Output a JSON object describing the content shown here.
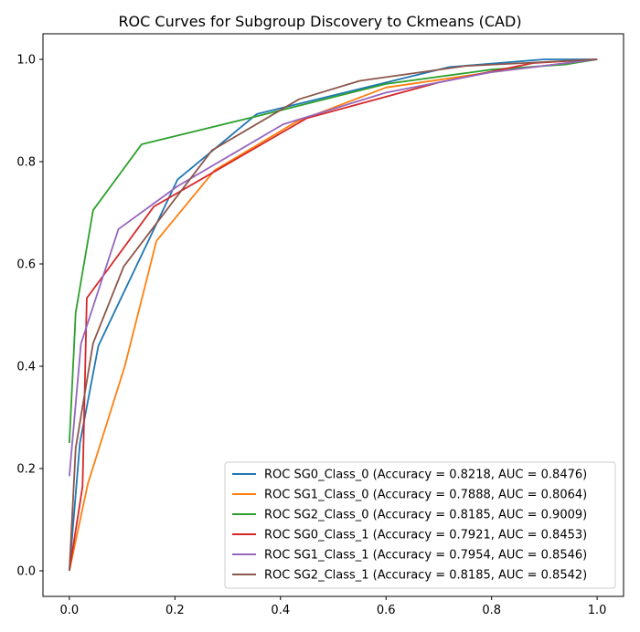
{
  "chart_data": {
    "type": "line",
    "title": "ROC Curves for Subgroup Discovery to Ckmeans (CAD)",
    "xlabel": "",
    "ylabel": "",
    "xlim": [
      -0.05,
      1.05
    ],
    "ylim": [
      -0.05,
      1.05
    ],
    "x_ticks": [
      0.0,
      0.2,
      0.4,
      0.6,
      0.8,
      1.0
    ],
    "y_ticks": [
      0.0,
      0.2,
      0.4,
      0.6,
      0.8,
      1.0
    ],
    "x_tick_labels": [
      "0.0",
      "0.2",
      "0.4",
      "0.6",
      "0.8",
      "1.0"
    ],
    "y_tick_labels": [
      "0.0",
      "0.2",
      "0.4",
      "0.6",
      "0.8",
      "1.0"
    ],
    "grid": false,
    "legend_position": "lower-right",
    "series": [
      {
        "name": "ROC SG0_Class_0 (Accuracy = 0.8218, AUC = 0.8476)",
        "color": "#1f77b4",
        "points": [
          [
            0.0,
            0.0
          ],
          [
            0.02,
            0.25
          ],
          [
            0.055,
            0.44
          ],
          [
            0.205,
            0.765
          ],
          [
            0.355,
            0.893
          ],
          [
            0.72,
            0.985
          ],
          [
            0.9,
            1.0
          ],
          [
            1.0,
            1.0
          ]
        ]
      },
      {
        "name": "ROC SG1_Class_0 (Accuracy = 0.7888, AUC = 0.8064)",
        "color": "#ff7f0e",
        "points": [
          [
            0.0,
            0.0
          ],
          [
            0.035,
            0.17
          ],
          [
            0.105,
            0.4
          ],
          [
            0.165,
            0.645
          ],
          [
            0.275,
            0.783
          ],
          [
            0.43,
            0.878
          ],
          [
            0.6,
            0.945
          ],
          [
            0.8,
            0.975
          ],
          [
            1.0,
            1.0
          ]
        ]
      },
      {
        "name": "ROC SG2_Class_0 (Accuracy = 0.8185, AUC = 0.9009)",
        "color": "#2ca02c",
        "points": [
          [
            0.0,
            0.25
          ],
          [
            0.012,
            0.505
          ],
          [
            0.045,
            0.705
          ],
          [
            0.137,
            0.834
          ],
          [
            0.36,
            0.89
          ],
          [
            0.6,
            0.952
          ],
          [
            0.8,
            0.98
          ],
          [
            0.94,
            0.99
          ],
          [
            1.0,
            1.0
          ]
        ]
      },
      {
        "name": "ROC SG0_Class_1 (Accuracy = 0.7921, AUC = 0.8453)",
        "color": "#d62728",
        "points": [
          [
            0.0,
            0.0
          ],
          [
            0.025,
            0.165
          ],
          [
            0.033,
            0.533
          ],
          [
            0.16,
            0.712
          ],
          [
            0.45,
            0.885
          ],
          [
            0.7,
            0.955
          ],
          [
            0.88,
            0.993
          ],
          [
            1.0,
            1.0
          ]
        ]
      },
      {
        "name": "ROC SG1_Class_1 (Accuracy = 0.7954, AUC = 0.8546)",
        "color": "#9467bd",
        "points": [
          [
            0.0,
            0.185
          ],
          [
            0.022,
            0.444
          ],
          [
            0.093,
            0.668
          ],
          [
            0.205,
            0.752
          ],
          [
            0.405,
            0.873
          ],
          [
            0.6,
            0.935
          ],
          [
            0.8,
            0.975
          ],
          [
            1.0,
            1.0
          ]
        ]
      },
      {
        "name": "ROC SG2_Class_1 (Accuracy = 0.8185, AUC = 0.8542)",
        "color": "#8c564b",
        "points": [
          [
            0.0,
            0.0
          ],
          [
            0.012,
            0.24
          ],
          [
            0.045,
            0.445
          ],
          [
            0.103,
            0.595
          ],
          [
            0.27,
            0.822
          ],
          [
            0.435,
            0.922
          ],
          [
            0.55,
            0.958
          ],
          [
            0.75,
            0.987
          ],
          [
            1.0,
            1.0
          ]
        ]
      }
    ]
  }
}
